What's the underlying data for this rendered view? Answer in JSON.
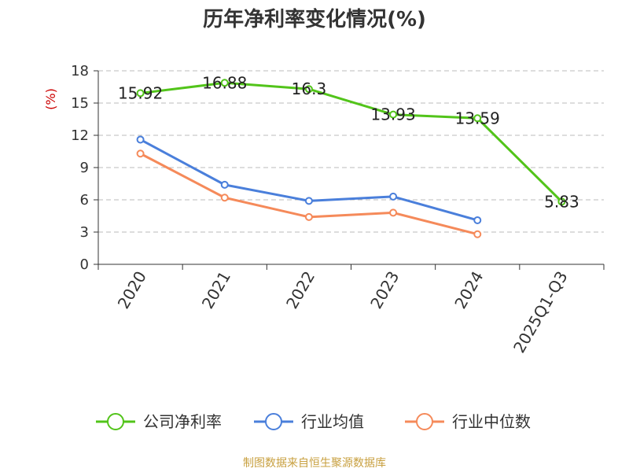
{
  "chart_data": {
    "type": "line",
    "title": "历年净利率变化情况(%)",
    "ylabel": "(%)",
    "xlabel": "",
    "categories": [
      "2020",
      "2021",
      "2022",
      "2023",
      "2024",
      "2025Q1-Q3"
    ],
    "ylim": [
      0,
      18
    ],
    "yticks": [
      0,
      3,
      6,
      9,
      12,
      15,
      18
    ],
    "grid": true,
    "legend_position": "bottom",
    "series": [
      {
        "name": "公司净利率",
        "color": "#52c41a",
        "values": [
          15.92,
          16.88,
          16.3,
          13.93,
          13.59,
          5.83
        ],
        "labels": [
          "15.92",
          "16.88",
          "16.3",
          "13.93",
          "13.59",
          "5.83"
        ]
      },
      {
        "name": "行业均值",
        "color": "#4a7fdb",
        "values": [
          11.6,
          7.4,
          5.9,
          6.3,
          4.1,
          null
        ]
      },
      {
        "name": "行业中位数",
        "color": "#f58a5a",
        "values": [
          10.3,
          6.2,
          4.4,
          4.8,
          2.8,
          null
        ]
      }
    ]
  },
  "source": {
    "text": "制图数据来自恒生聚源数据库",
    "color": "#c8a040"
  },
  "ylabel_color": "#cc0000"
}
